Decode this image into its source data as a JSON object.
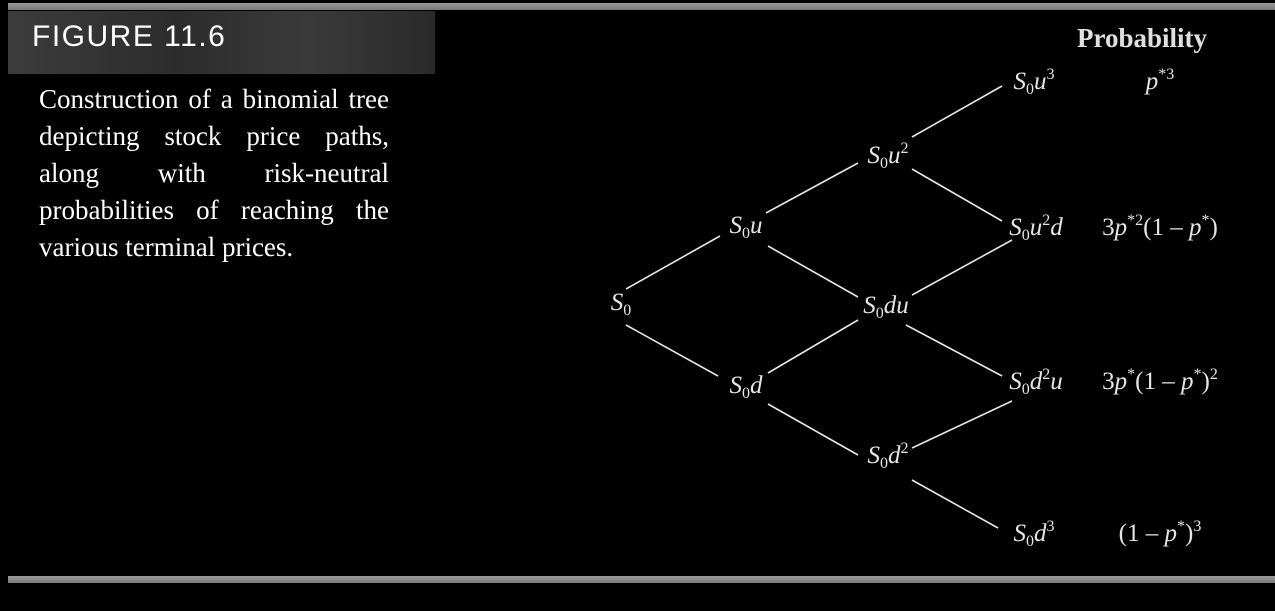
{
  "figure": {
    "label": "FIGURE 11.6",
    "caption": "Construction of a binomial tree depicting stock price paths, along with risk-neutral probabilities of reaching the various terminal prices."
  },
  "probability_header": "Probability",
  "nodes": {
    "s0": "S0",
    "s0u": "S0u",
    "s0d": "S0d",
    "s0u2": "S0u2",
    "s0du": "S0du",
    "s0d2": "S0d2",
    "s0u3": "S0u3",
    "s0u2d": "S0u2d",
    "s0d2u": "S0d2u",
    "s0d3": "S0d3"
  },
  "probabilities": {
    "u3": "p*3",
    "u2d": "3p*2(1 – p*)",
    "d2u": "3p*(1 – p*)2",
    "d3": "(1 – p*)3"
  },
  "colors": {
    "background": "#000000",
    "rule": "#8a8a8a",
    "banner": "#333333",
    "text": "#e6e6e6"
  }
}
